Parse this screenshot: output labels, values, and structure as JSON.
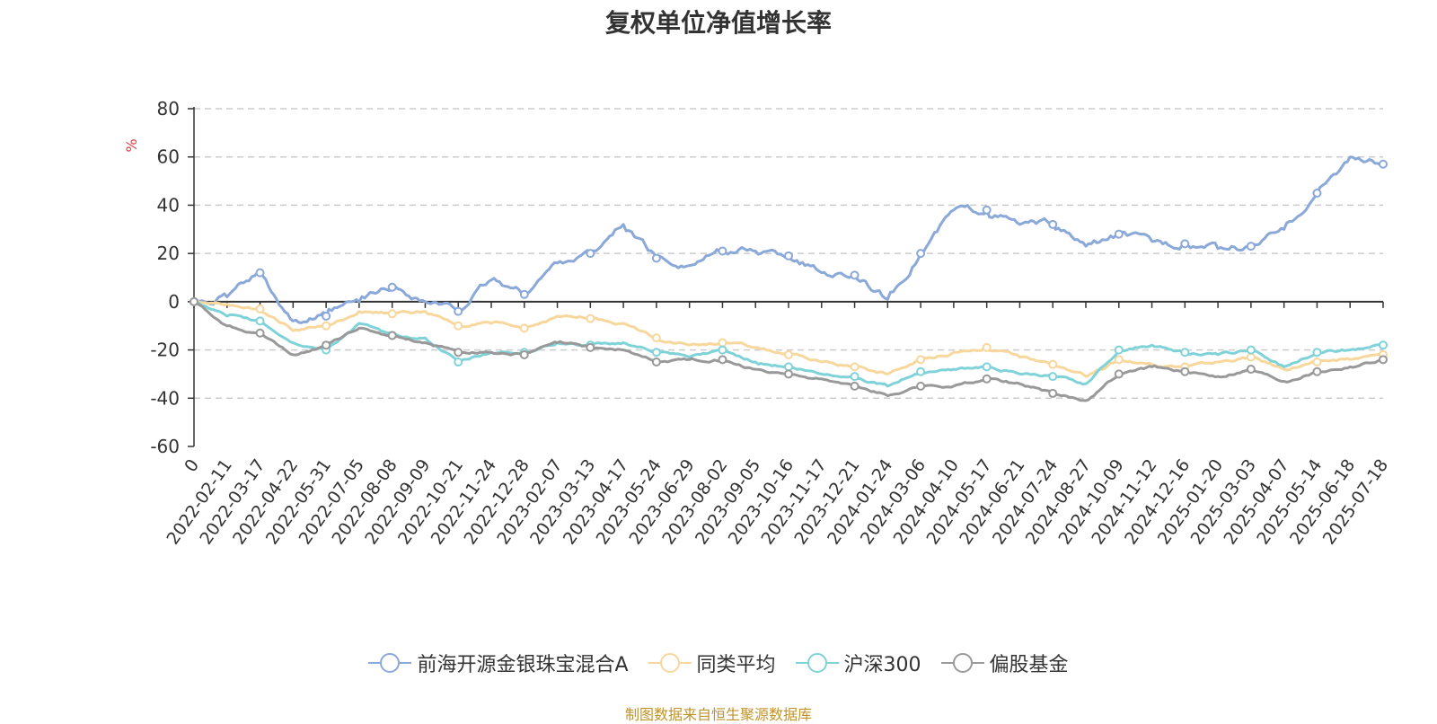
{
  "chart_data": {
    "type": "line",
    "title": "复权单位净值增长率",
    "ylabel": "%",
    "xlabel": "",
    "ylim": [
      -60,
      80
    ],
    "yticks": [
      80,
      60,
      40,
      20,
      0,
      -20,
      -40,
      -60
    ],
    "categories": [
      "0",
      "2022-02-11",
      "2022-03-17",
      "2022-04-22",
      "2022-05-31",
      "2022-07-05",
      "2022-08-08",
      "2022-09-09",
      "2022-10-21",
      "2022-11-24",
      "2022-12-28",
      "2023-02-07",
      "2023-03-13",
      "2023-04-17",
      "2023-05-24",
      "2023-06-29",
      "2023-08-02",
      "2023-09-05",
      "2023-10-16",
      "2023-11-17",
      "2023-12-21",
      "2024-01-24",
      "2024-03-06",
      "2024-04-10",
      "2024-05-17",
      "2024-06-21",
      "2024-07-24",
      "2024-08-27",
      "2024-10-09",
      "2024-11-12",
      "2024-12-16",
      "2025-01-20",
      "2025-03-03",
      "2025-04-07",
      "2025-05-14",
      "2025-06-18",
      "2025-07-18"
    ],
    "grid": true,
    "legend_position": "bottom-center",
    "source": "制图数据来自恒生聚源数据库",
    "series": [
      {
        "name": "前海开源金银珠宝混合A",
        "color": "#8aa8d8",
        "values": [
          0,
          2,
          12,
          -8,
          -6,
          0,
          6,
          0,
          -4,
          9,
          3,
          16,
          20,
          32,
          18,
          15,
          21,
          21,
          19,
          12,
          11,
          1,
          20,
          38,
          38,
          32,
          32,
          23,
          28,
          25,
          24,
          22,
          23,
          30,
          45,
          60,
          57
        ]
      },
      {
        "name": "同类平均",
        "color": "#f7d79c",
        "values": [
          0,
          -1,
          -3,
          -12,
          -10,
          -4,
          -5,
          -4,
          -10,
          -9,
          -11,
          -6,
          -7,
          -9,
          -15,
          -18,
          -17,
          -19,
          -22,
          -25,
          -27,
          -30,
          -24,
          -21,
          -19,
          -23,
          -26,
          -31,
          -24,
          -26,
          -27,
          -25,
          -23,
          -28,
          -25,
          -24,
          -22
        ]
      },
      {
        "name": "沪深300",
        "color": "#7fd3d8",
        "values": [
          0,
          -6,
          -8,
          -17,
          -20,
          -9,
          -14,
          -15,
          -25,
          -21,
          -21,
          -17,
          -18,
          -17,
          -21,
          -23,
          -20,
          -25,
          -27,
          -30,
          -31,
          -35,
          -29,
          -28,
          -27,
          -30,
          -31,
          -34,
          -20,
          -18,
          -21,
          -22,
          -20,
          -27,
          -21,
          -20,
          -18
        ]
      },
      {
        "name": "偏股基金",
        "color": "#999999",
        "values": [
          0,
          -10,
          -13,
          -22,
          -18,
          -11,
          -14,
          -17,
          -21,
          -21,
          -22,
          -17,
          -19,
          -20,
          -25,
          -24,
          -24,
          -28,
          -30,
          -32,
          -35,
          -39,
          -35,
          -35,
          -32,
          -34,
          -38,
          -41,
          -30,
          -27,
          -29,
          -31,
          -28,
          -33,
          -29,
          -27,
          -24
        ]
      }
    ]
  }
}
